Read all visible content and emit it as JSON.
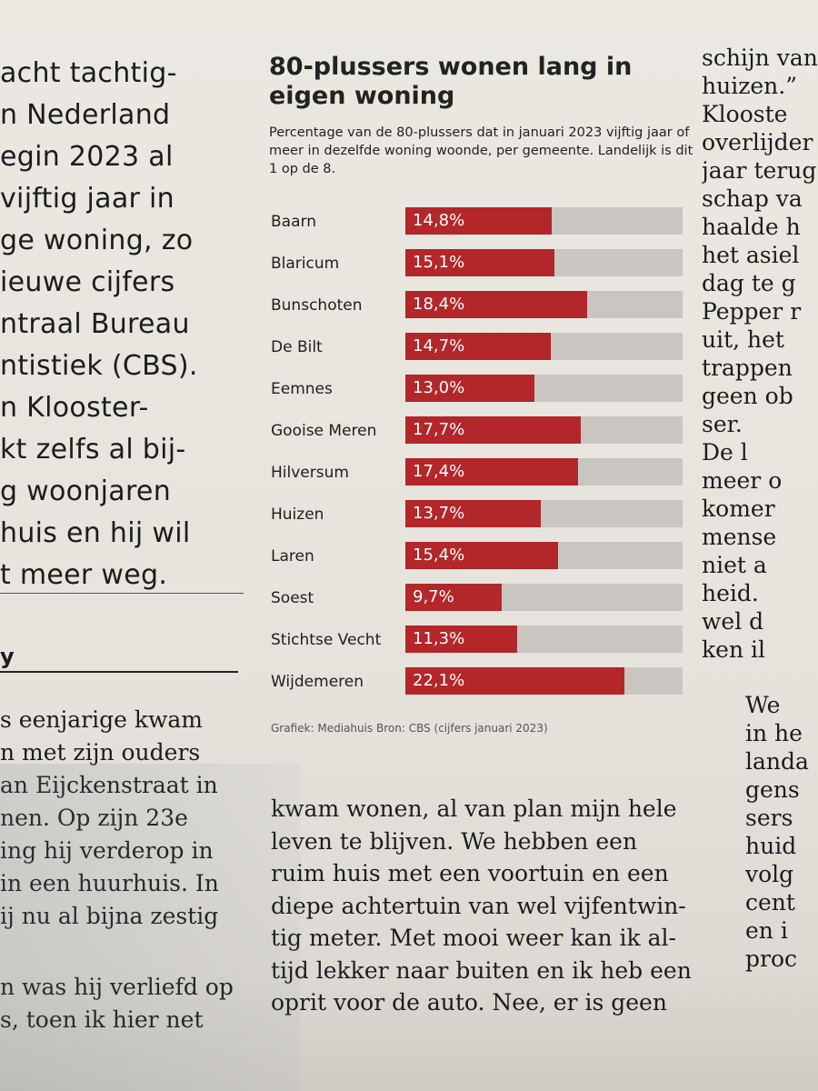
{
  "article": {
    "left_top": [
      "acht tachtig-",
      "n Nederland",
      "egin 2023 al",
      "vijftig jaar in",
      "ge woning, zo",
      "ieuwe cijfers",
      "ntraal Bureau",
      "ntistiek (CBS).",
      "n Klooster-",
      "kt zelfs al bij-",
      "g woonjaren",
      "huis en hij wil",
      "t meer weg."
    ],
    "subhead": "y",
    "left_bottom": [
      "s eenjarige kwam",
      "n met zijn ouders",
      "an Eijckenstraat in",
      "nen. Op zijn 23e",
      "ing hij verderop in",
      "in een huurhuis. In",
      "ij nu al bijna zestig"
    ],
    "left_bottom2": [
      "n was hij verliefd op",
      "s, toen ik hier net"
    ],
    "right_top": [
      "schijn van",
      "huizen.”",
      "Klooste",
      "overlijder",
      "jaar terug",
      "schap va",
      "haalde h",
      "het asiel",
      "dag te g",
      "Pepper r",
      "uit, het",
      "trappen",
      "geen ob",
      "ser.",
      "De l",
      "meer o",
      "komer",
      "mense",
      "niet a",
      "heid.",
      "wel d",
      "ken il"
    ],
    "right_bottom": [
      "We",
      "in he",
      "landa",
      "gens",
      "sers",
      "huid",
      "volg",
      "cent",
      "en i",
      "proc"
    ],
    "mid_bottom": [
      "kwam wonen, al van plan mijn hele",
      "leven te blijven. We hebben een",
      "ruim huis met een voortuin en een",
      "diepe achtertuin van wel vijfentwin-",
      "tig meter. Met mooi weer kan ik al-",
      "tijd lekker naar buiten en ik heb een",
      "oprit voor de auto. Nee, er is geen"
    ]
  },
  "chart_data": {
    "type": "bar",
    "orientation": "horizontal",
    "title": "80-plussers wonen lang in eigen woning",
    "subtitle": "Percentage van de 80-plussers dat in januari 2023 vijftig jaar of meer in dezelfde woning woonde, per gemeente. Landelijk is dit 1 op de 8.",
    "source": "Grafiek: Mediahuis  Bron: CBS (cijfers januari 2023)",
    "categories": [
      "Baarn",
      "Blaricum",
      "Bunschoten",
      "De Bilt",
      "Eemnes",
      "Gooise Meren",
      "Hilversum",
      "Huizen",
      "Laren",
      "Soest",
      "Stichtse Vecht",
      "Wijdemeren"
    ],
    "values": [
      14.8,
      15.1,
      18.4,
      14.7,
      13.0,
      17.7,
      17.4,
      13.7,
      15.4,
      9.7,
      11.3,
      22.1
    ],
    "labels": [
      "14,8%",
      "15,1%",
      "18,4%",
      "14,7%",
      "13,0%",
      "17,7%",
      "17,4%",
      "13,7%",
      "15,4%",
      "9,7%",
      "11,3%",
      "22,1%"
    ],
    "xlim": [
      0,
      28
    ],
    "grid": false,
    "colors": {
      "bar": "#b3262a",
      "track": "#c9c6c2"
    }
  }
}
